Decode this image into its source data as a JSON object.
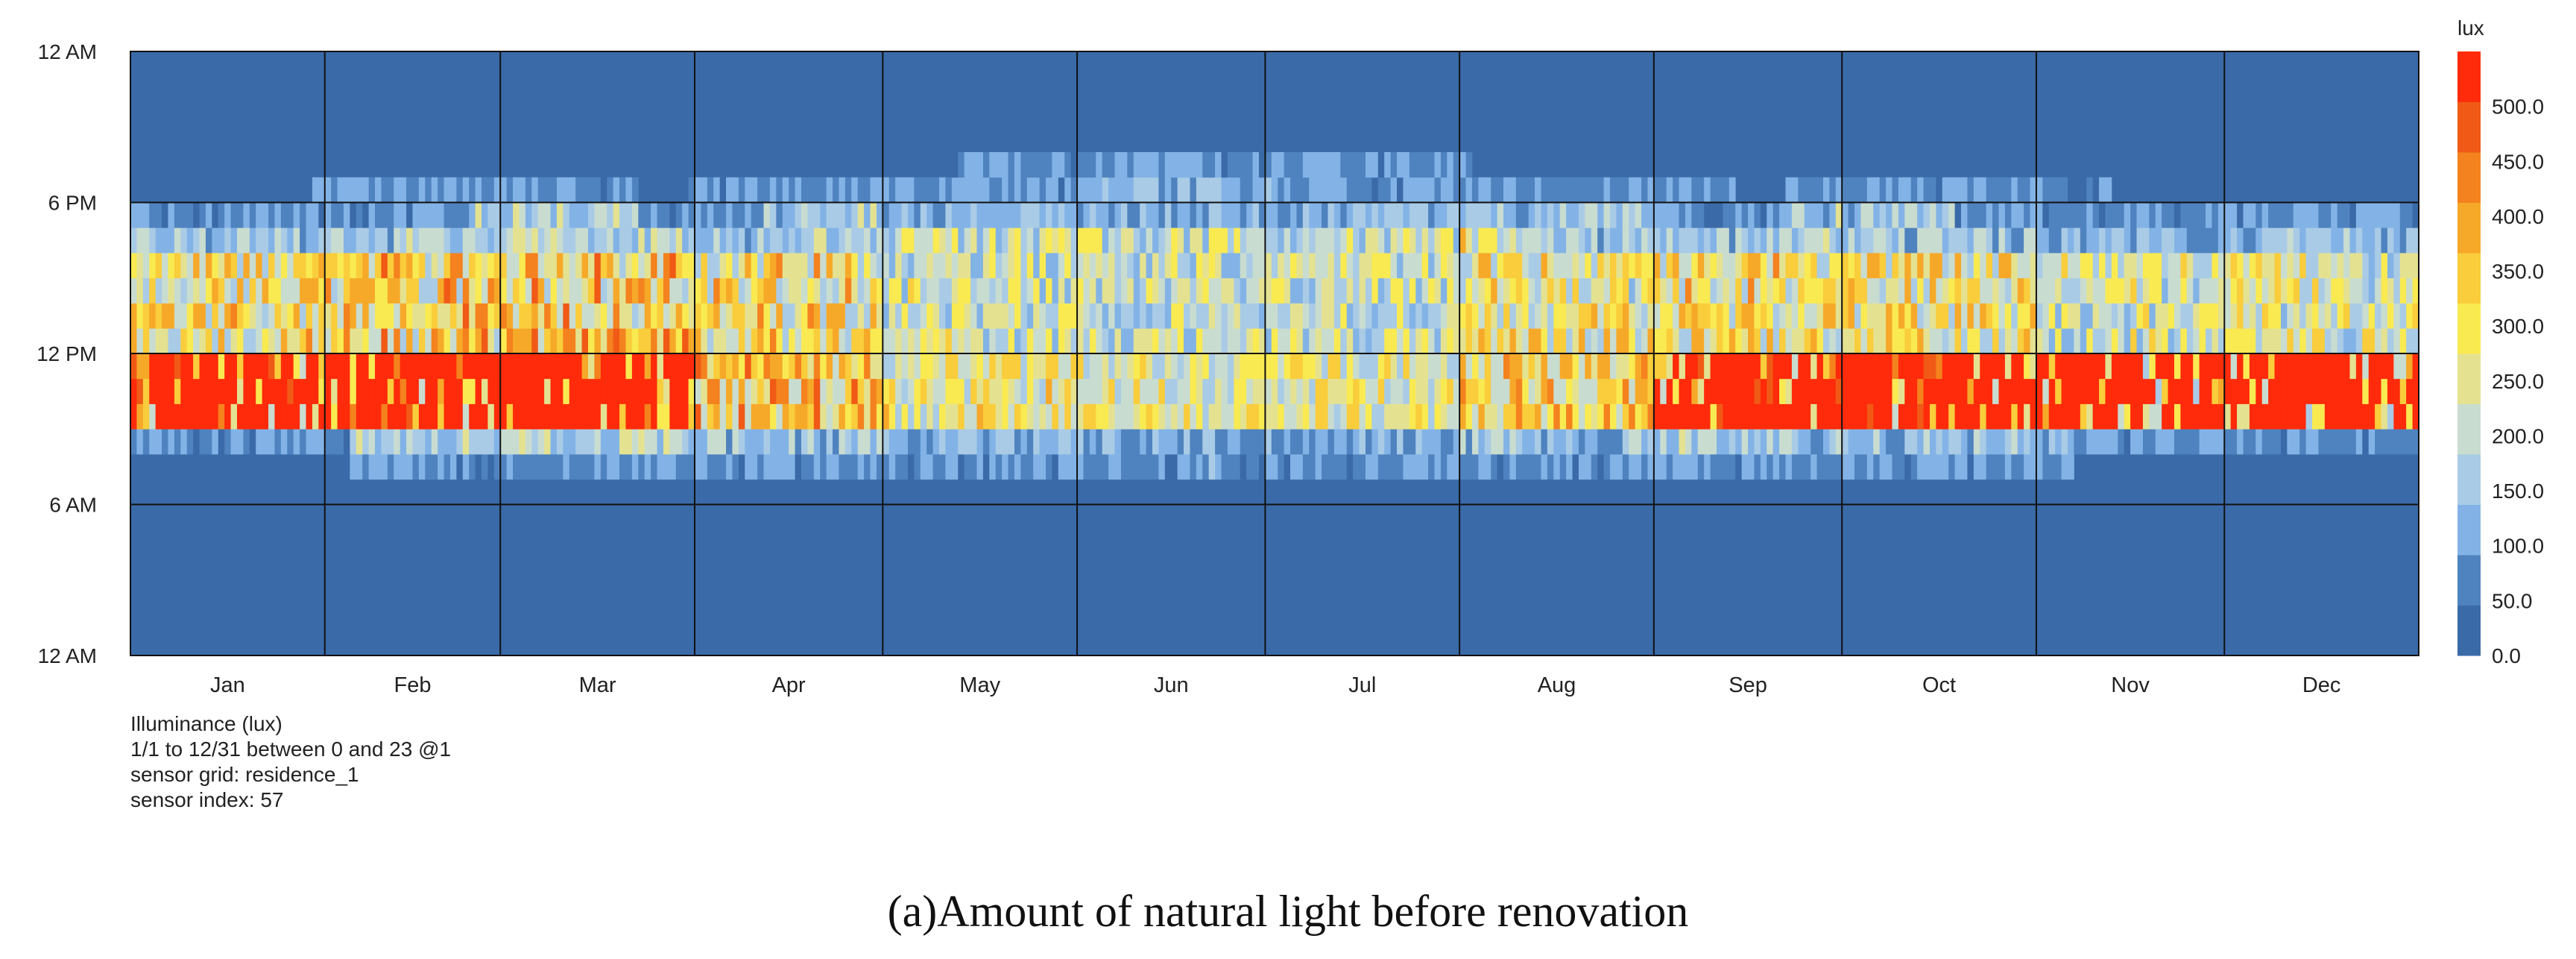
{
  "chart_data": {
    "type": "heatmap",
    "title": "Illuminance (lux)",
    "x_categories": [
      "Jan",
      "Feb",
      "Mar",
      "Apr",
      "May",
      "Jun",
      "Jul",
      "Aug",
      "Sep",
      "Oct",
      "Nov",
      "Dec"
    ],
    "days_per_month": [
      31,
      28,
      31,
      30,
      31,
      30,
      31,
      31,
      30,
      31,
      30,
      31
    ],
    "y_tick_labels": [
      "12 AM",
      "6 AM",
      "12 PM",
      "6 PM",
      "12 AM"
    ],
    "y_range_hours": [
      0,
      24
    ],
    "legend": {
      "unit": "lux",
      "ticks": [
        "0.0",
        "50.0",
        "100.0",
        "150.0",
        "200.0",
        "250.0",
        "300.0",
        "350.0",
        "400.0",
        "450.0",
        "500.0"
      ],
      "range": [
        0,
        550
      ],
      "colors": [
        "#3a6aa8",
        "#4f83bf",
        "#83b3e6",
        "#a9cbe6",
        "#c9dcd0",
        "#e4e291",
        "#f9ea52",
        "#f9cd3b",
        "#f6a929",
        "#f4821e",
        "#f05a16",
        "#ff2b0a"
      ]
    },
    "daylight_hours": {
      "earliest_sunrise": 7,
      "latest_sunset": 19
    },
    "peak_band": {
      "hours": [
        9,
        12
      ],
      "saturated_months": [
        "Jan",
        "Feb",
        "Mar",
        "Sep",
        "Oct",
        "Nov",
        "Dec"
      ],
      "value_lux": 550
    },
    "monthly_typical_midday_lux": {
      "Jan": 320,
      "Feb": 360,
      "Mar": 380,
      "Apr": 330,
      "May": 250,
      "Jun": 230,
      "Jul": 240,
      "Aug": 300,
      "Sep": 330,
      "Oct": 320,
      "Nov": 260,
      "Dec": 270
    },
    "info_lines": [
      "Illuminance (lux)",
      "1/1 to 12/31 between 0 and 23 @1",
      "sensor grid: residence_1",
      "sensor index: 57"
    ]
  },
  "caption": "(a)Amount of natural light before renovation"
}
